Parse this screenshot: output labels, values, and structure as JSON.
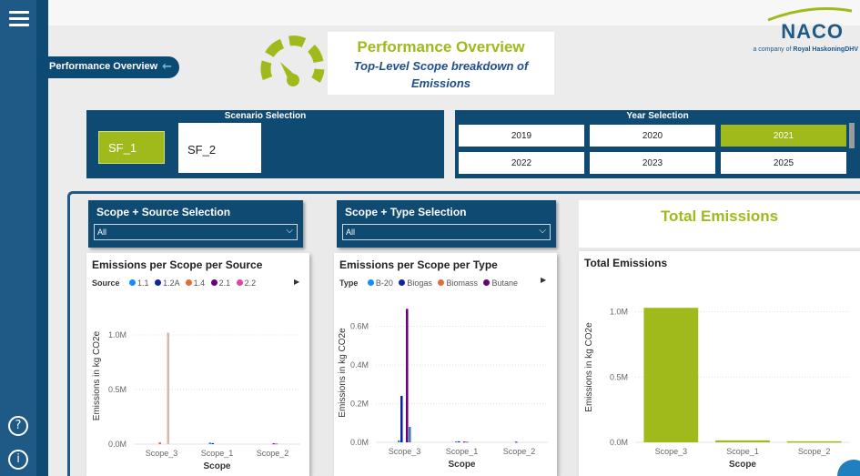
{
  "nav": {
    "current_page": "Performance Overview",
    "back_arrow": "←"
  },
  "header": {
    "title": "Performance Overview",
    "subtitle_line1": "Top-Level Scope breakdown of",
    "subtitle_line2": "Emissions",
    "logo_text": "NACO",
    "logo_tagline_prefix": "a company of",
    "logo_tagline_brand": "Royal HaskoningDHV"
  },
  "rail": {
    "help_icon": "?",
    "info_icon": "i"
  },
  "scenario": {
    "title": "Scenario Selection",
    "options": [
      "SF_1",
      "SF_2"
    ],
    "selected": "SF_1"
  },
  "years": {
    "title": "Year Selection",
    "options": [
      "2019",
      "2020",
      "2021",
      "2022",
      "2023",
      "2025"
    ],
    "selected": "2021"
  },
  "slicer_source": {
    "title": "Scope + Source Selection",
    "value": "All"
  },
  "slicer_type": {
    "title": "Scope + Type Selection",
    "value": "All"
  },
  "total_header": "Total Emissions",
  "colors": {
    "accent_green": "#9fba1a",
    "navy": "#0f4a73",
    "blue": "#1f5a86"
  },
  "chart_data": [
    {
      "type": "bar",
      "title": "Emissions per Scope per Source",
      "legend_title": "Source",
      "categories": [
        "Scope_3",
        "Scope_1",
        "Scope_2"
      ],
      "xlabel": "Scope",
      "ylabel": "Emissions in kg CO2e",
      "yticks": [
        "0.0M",
        "0.5M",
        "1.0M"
      ],
      "ylim": [
        0,
        1250000
      ],
      "series": [
        {
          "name": "1.1",
          "color": "#118dff",
          "values": [
            0,
            14000,
            0
          ]
        },
        {
          "name": "1.2A",
          "color": "#12239e",
          "values": [
            0,
            9000,
            0
          ]
        },
        {
          "name": "1.4",
          "color": "#e66c37",
          "values": [
            16000,
            0,
            0
          ]
        },
        {
          "name": "2.1",
          "color": "#6b007b",
          "values": [
            0,
            0,
            7000
          ]
        },
        {
          "name": "2.2",
          "color": "#e044a7",
          "values": [
            0,
            0,
            6000
          ]
        },
        {
          "name": "",
          "color": "#d9b8a8",
          "values": [
            1020000,
            0,
            0
          ]
        }
      ]
    },
    {
      "type": "bar",
      "title": "Emissions per Scope per Type",
      "legend_title": "Type",
      "categories": [
        "Scope_3",
        "Scope_1",
        "Scope_2"
      ],
      "xlabel": "Scope",
      "ylabel": "Emissions in kg CO2e",
      "yticks": [
        "0.0M",
        "0.2M",
        "0.4M",
        "0.6M"
      ],
      "ylim": [
        0,
        0.72
      ],
      "series": [
        {
          "name": "B-20",
          "color": "#118dff",
          "values": [
            0.01,
            0.005,
            0
          ]
        },
        {
          "name": "Biogas",
          "color": "#12239e",
          "values": [
            0.24,
            0.005,
            0.003
          ]
        },
        {
          "name": "Biomass",
          "color": "#e66c37",
          "values": [
            0,
            0,
            0
          ]
        },
        {
          "name": "Butane",
          "color": "#6b007b",
          "values": [
            0.69,
            0.004,
            0
          ]
        },
        {
          "name": "",
          "color": "#3a7fbf",
          "values": [
            0.08,
            0.003,
            0
          ]
        }
      ]
    },
    {
      "type": "bar",
      "title": "Total Emissions",
      "categories": [
        "Scope_3",
        "Scope_1",
        "Scope_2"
      ],
      "xlabel": "Scope",
      "ylabel": "Emissions in kg CO2e",
      "yticks": [
        "0.0M",
        "0.5M",
        "1.0M"
      ],
      "ylim": [
        0,
        1150000
      ],
      "values": [
        1030000,
        15000,
        8000
      ],
      "color": "#9fba1a"
    }
  ]
}
